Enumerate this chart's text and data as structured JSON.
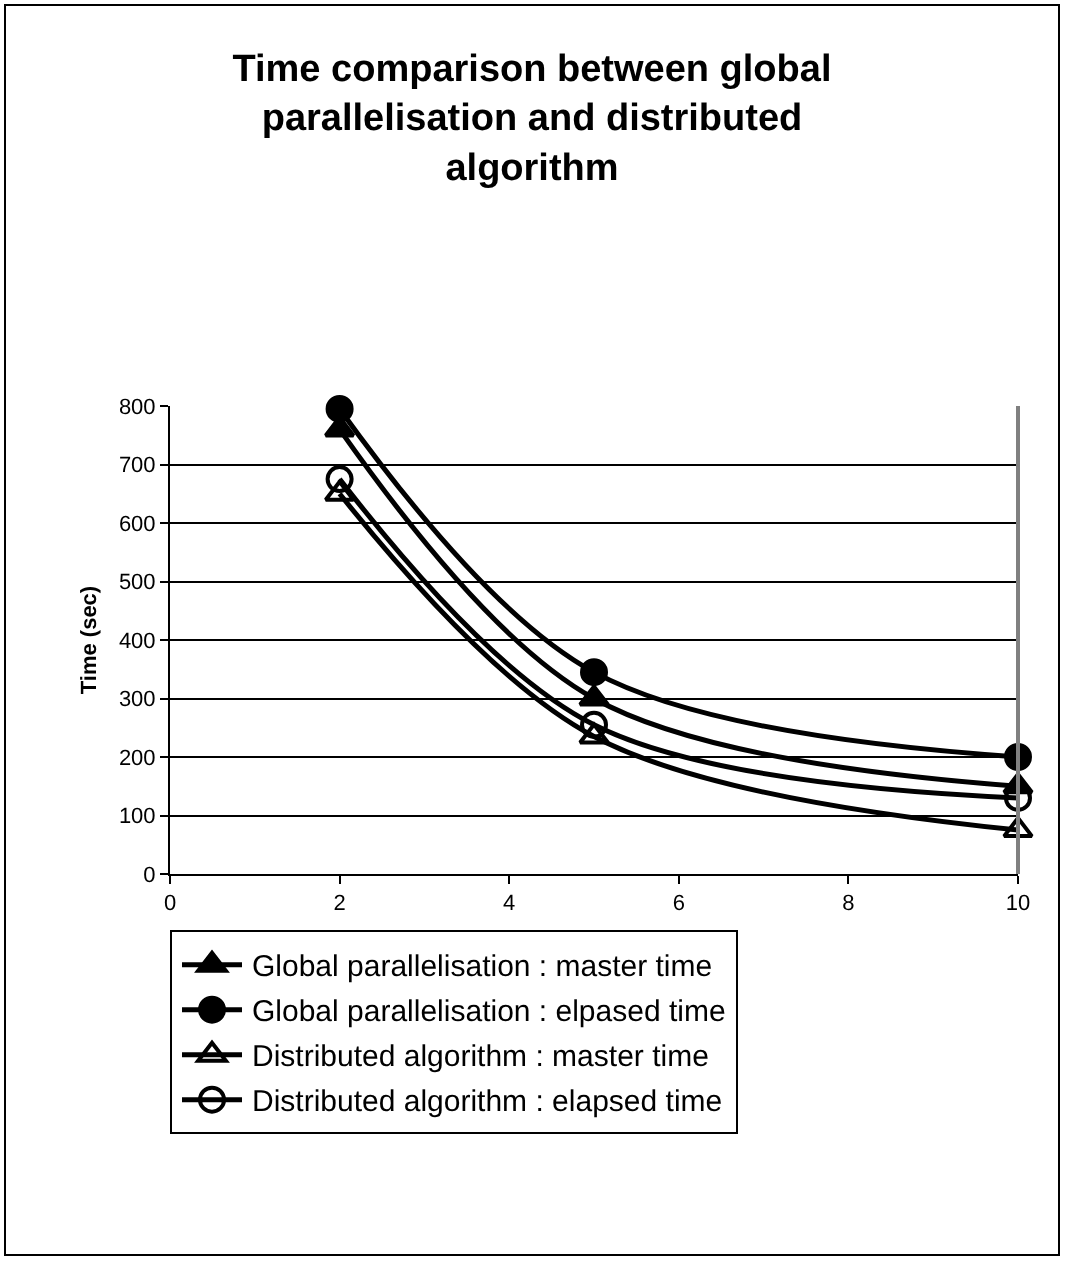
{
  "chart_data": {
    "type": "line",
    "title": "Time comparison between global parallelisation and distributed algorithm",
    "ylabel": "Time (sec)",
    "x": [
      2,
      5,
      10
    ],
    "series": [
      {
        "name": "Global parallelisation : master time",
        "color": "#000000",
        "marker": "triangle",
        "values": [
          760,
          300,
          150
        ]
      },
      {
        "name": "Global parallelisation : elpased time",
        "color": "#000000",
        "marker": "circle",
        "values": [
          795,
          345,
          200
        ]
      },
      {
        "name": "Distributed algorithm : master time",
        "color": "#000000",
        "marker": "triangle-open",
        "values": [
          650,
          235,
          75
        ]
      },
      {
        "name": "Distributed algorithm : elapsed time",
        "color": "#000000",
        "marker": "circle-open",
        "values": [
          675,
          255,
          130
        ]
      }
    ],
    "xlim": [
      0,
      10
    ],
    "xticks": [
      0,
      2,
      4,
      6,
      8,
      10
    ],
    "ylim": [
      0,
      800
    ],
    "yticks": [
      0,
      100,
      200,
      300,
      400,
      500,
      600,
      700,
      800
    ],
    "grid": "y",
    "legend": "bottom",
    "line_style": "solid"
  }
}
